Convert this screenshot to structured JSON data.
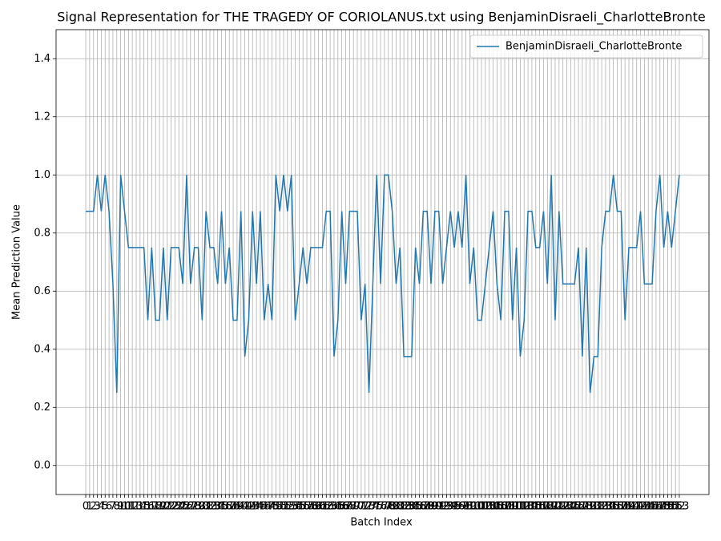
{
  "chart_data": {
    "type": "line",
    "title": "Signal Representation for THE TRAGEDY OF CORIOLANUS.txt using BenjaminDisraeli_CharlotteBronte",
    "x_label": "Batch Index",
    "y_label": "Mean Prediction Value",
    "x": [
      0,
      1,
      2,
      3,
      4,
      5,
      6,
      7,
      8,
      9,
      10,
      11,
      12,
      13,
      14,
      15,
      16,
      17,
      18,
      19,
      20,
      21,
      22,
      23,
      24,
      25,
      26,
      27,
      28,
      29,
      30,
      31,
      32,
      33,
      34,
      35,
      36,
      37,
      38,
      39,
      40,
      41,
      42,
      43,
      44,
      45,
      46,
      47,
      48,
      49,
      50,
      51,
      52,
      53,
      54,
      55,
      56,
      57,
      58,
      59,
      60,
      61,
      62,
      63,
      64,
      65,
      66,
      67,
      68,
      69,
      70,
      71,
      72,
      73,
      74,
      75,
      76,
      77,
      78,
      79,
      80,
      81,
      82,
      83,
      84,
      85,
      86,
      87,
      88,
      89,
      90,
      91,
      92,
      93,
      94,
      95,
      96,
      97,
      98,
      99,
      100,
      101,
      102,
      103,
      104,
      105,
      106,
      107,
      108,
      109,
      110,
      111,
      112,
      113,
      114,
      115,
      116,
      117,
      118,
      119,
      120,
      121,
      122,
      123,
      124,
      125,
      126,
      127,
      128,
      129,
      130,
      131,
      132,
      133,
      134,
      135,
      136,
      137,
      138,
      139,
      140,
      141,
      142,
      143,
      144,
      145,
      146,
      147,
      148,
      149,
      150,
      151,
      152,
      153
    ],
    "series": [
      {
        "name": "BenjaminDisraeli_CharlotteBronte",
        "color": "#1f77b4",
        "values": [
          0.875,
          0.875,
          0.875,
          1.0,
          0.875,
          1.0,
          0.875,
          0.625,
          0.25,
          1.0,
          0.875,
          0.75,
          0.75,
          0.75,
          0.75,
          0.75,
          0.5,
          0.75,
          0.5,
          0.5,
          0.75,
          0.5,
          0.75,
          0.75,
          0.75,
          0.625,
          1.0,
          0.625,
          0.75,
          0.75,
          0.5,
          0.875,
          0.75,
          0.75,
          0.625,
          0.875,
          0.625,
          0.75,
          0.5,
          0.5,
          0.875,
          0.375,
          0.5,
          0.875,
          0.625,
          0.875,
          0.5,
          0.625,
          0.5,
          1.0,
          0.875,
          1.0,
          0.875,
          1.0,
          0.5,
          0.625,
          0.75,
          0.625,
          0.75,
          0.75,
          0.75,
          0.75,
          0.875,
          0.875,
          0.375,
          0.5,
          0.875,
          0.625,
          0.875,
          0.875,
          0.875,
          0.5,
          0.625,
          0.25,
          0.625,
          1.0,
          0.625,
          1.0,
          1.0,
          0.875,
          0.625,
          0.75,
          0.375,
          0.375,
          0.375,
          0.75,
          0.625,
          0.875,
          0.875,
          0.625,
          0.875,
          0.875,
          0.625,
          0.75,
          0.875,
          0.75,
          0.875,
          0.75,
          1.0,
          0.625,
          0.75,
          0.5,
          0.5,
          0.625,
          0.75,
          0.875,
          0.625,
          0.5,
          0.875,
          0.875,
          0.5,
          0.75,
          0.375,
          0.5,
          0.875,
          0.875,
          0.75,
          0.75,
          0.875,
          0.625,
          1.0,
          0.5,
          0.875,
          0.625,
          0.625,
          0.625,
          0.625,
          0.75,
          0.375,
          0.75,
          0.25,
          0.375,
          0.375,
          0.75,
          0.875,
          0.875,
          1.0,
          0.875,
          0.875,
          0.5,
          0.75,
          0.75,
          0.75,
          0.875,
          0.625,
          0.625,
          0.625,
          0.875,
          1.0,
          0.75,
          0.875,
          0.75,
          0.875,
          1.0
        ]
      }
    ],
    "xlim": [
      -7.65,
      160.65
    ],
    "xticks": [
      0,
      1,
      2,
      3,
      4,
      5,
      6,
      7,
      8,
      9,
      10,
      11,
      12,
      13,
      14,
      15,
      16,
      17,
      18,
      19,
      20,
      21,
      22,
      23,
      24,
      25,
      26,
      27,
      28,
      29,
      30,
      31,
      32,
      33,
      34,
      35,
      36,
      37,
      38,
      39,
      40,
      41,
      42,
      43,
      44,
      45,
      46,
      47,
      48,
      49,
      50,
      51,
      52,
      53,
      54,
      55,
      56,
      57,
      58,
      59,
      60,
      61,
      62,
      63,
      64,
      65,
      66,
      67,
      68,
      69,
      70,
      71,
      72,
      73,
      74,
      75,
      76,
      77,
      78,
      79,
      80,
      81,
      82,
      83,
      84,
      85,
      86,
      87,
      88,
      89,
      90,
      91,
      92,
      93,
      94,
      95,
      96,
      97,
      98,
      99,
      100,
      101,
      102,
      103,
      104,
      105,
      106,
      107,
      108,
      109,
      110,
      111,
      112,
      113,
      114,
      115,
      116,
      117,
      118,
      119,
      120,
      121,
      122,
      123,
      124,
      125,
      126,
      127,
      128,
      129,
      130,
      131,
      132,
      133,
      134,
      135,
      136,
      137,
      138,
      139,
      140,
      141,
      142,
      143,
      144,
      145,
      146,
      147,
      148,
      149,
      150,
      151,
      152,
      153
    ],
    "ylim": [
      -0.1,
      1.5
    ],
    "yticks": [
      {
        "value": 0,
        "label": "0.0"
      },
      0.2,
      0.4,
      0.6,
      0.8,
      {
        "value": 1,
        "label": "1.0"
      },
      1.2,
      1.4
    ],
    "grid": true,
    "legend_position": "upper right"
  }
}
